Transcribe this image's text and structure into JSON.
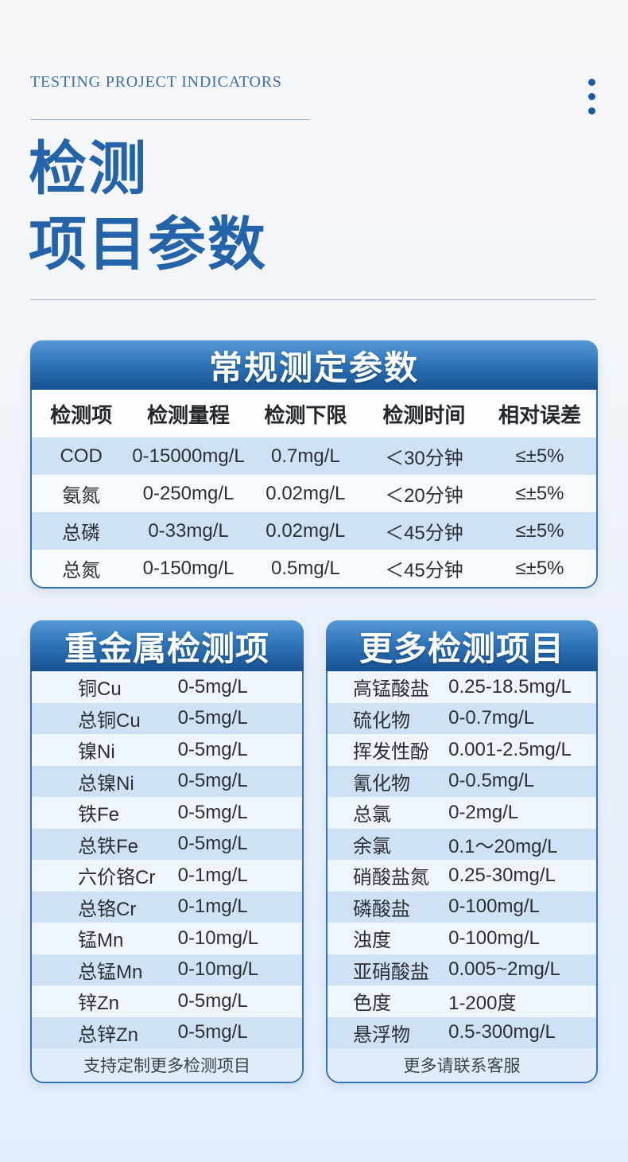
{
  "header": {
    "eyebrow": "TESTING PROJECT INDICATORS",
    "title_line1": "检测",
    "title_line2": "项目参数"
  },
  "main_table": {
    "title": "常规测定参数",
    "columns": [
      "检测项",
      "检测量程",
      "检测下限",
      "检测时间",
      "相对误差"
    ],
    "rows": [
      [
        "COD",
        "0-15000mg/L",
        "0.7mg/L",
        "＜30分钟",
        "≤±5%"
      ],
      [
        "氨氮",
        "0-250mg/L",
        "0.02mg/L",
        "＜20分钟",
        "≤±5%"
      ],
      [
        "总磷",
        "0-33mg/L",
        "0.02mg/L",
        "＜45分钟",
        "≤±5%"
      ],
      [
        "总氮",
        "0-150mg/L",
        "0.5mg/L",
        "＜45分钟",
        "≤±5%"
      ]
    ]
  },
  "heavy_metal_table": {
    "title": "重金属检测项",
    "rows": [
      [
        "铜Cu",
        "0-5mg/L"
      ],
      [
        "总铜Cu",
        "0-5mg/L"
      ],
      [
        "镍Ni",
        "0-5mg/L"
      ],
      [
        "总镍Ni",
        "0-5mg/L"
      ],
      [
        "铁Fe",
        "0-5mg/L"
      ],
      [
        "总铁Fe",
        "0-5mg/L"
      ],
      [
        "六价铬Cr",
        "0-1mg/L"
      ],
      [
        "总铬Cr",
        "0-1mg/L"
      ],
      [
        "锰Mn",
        "0-10mg/L"
      ],
      [
        "总锰Mn",
        "0-10mg/L"
      ],
      [
        "锌Zn",
        "0-5mg/L"
      ],
      [
        "总锌Zn",
        "0-5mg/L"
      ]
    ],
    "footer": "支持定制更多检测项目"
  },
  "more_items_table": {
    "title": "更多检测项目",
    "rows": [
      [
        "高锰酸盐",
        "0.25-18.5mg/L"
      ],
      [
        "硫化物",
        "0-0.7mg/L"
      ],
      [
        "挥发性酚",
        "0.001-2.5mg/L"
      ],
      [
        "氰化物",
        "0-0.5mg/L"
      ],
      [
        "总氯",
        "0-2mg/L"
      ],
      [
        "余氯",
        "0.1～20mg/L"
      ],
      [
        "硝酸盐氮",
        "0.25-30mg/L"
      ],
      [
        "磷酸盐",
        "0-100mg/L"
      ],
      [
        "浊度",
        "0-100mg/L"
      ],
      [
        "亚硝酸盐",
        "0.005~2mg/L"
      ],
      [
        "色度",
        "1-200度"
      ],
      [
        "悬浮物",
        "0.5-300mg/L"
      ]
    ],
    "footer": "更多请联系客服"
  },
  "colors": {
    "accent_blue": "#2463aa",
    "table_header_gradient_top": "#5598d5",
    "table_header_gradient_bottom": "#185190",
    "table_border": "#3273b5",
    "row_alt_blue": "#cfe2f5",
    "page_background_bottom": "#e3eefd"
  }
}
